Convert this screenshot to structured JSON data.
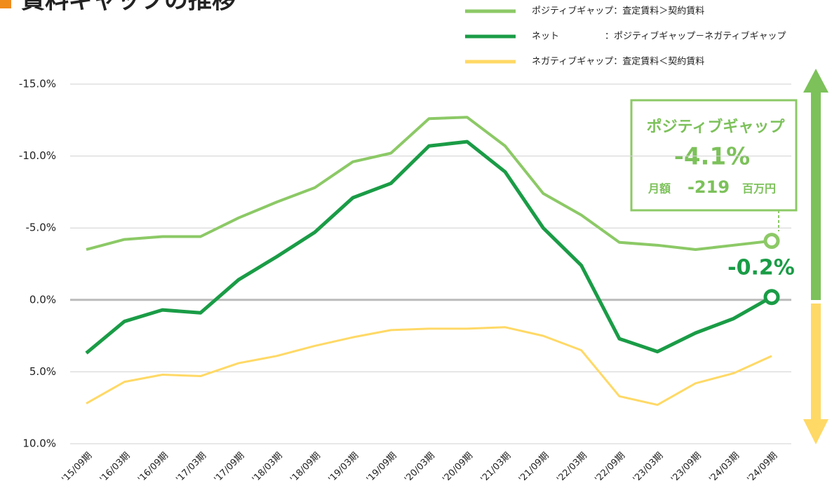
{
  "chart_data": {
    "type": "line",
    "title": "賃料ギャップの推移",
    "categories": [
      "'15/09期",
      "'16/03期",
      "'16/09期",
      "'17/03期",
      "'17/09期",
      "'18/03期",
      "'18/09期",
      "'19/03期",
      "'19/09期",
      "'20/03期",
      "'20/09期",
      "'21/03期",
      "'21/09期",
      "'22/03期",
      "'22/09期",
      "'23/03期",
      "'23/09期",
      "'24/03期",
      "'24/09期"
    ],
    "series": [
      {
        "name": "ポジティブギャップ：査定賃料＞契約賃料",
        "color": "#8cc966",
        "width": 4,
        "values": [
          -3.5,
          -4.2,
          -4.4,
          -4.4,
          -5.7,
          -6.8,
          -7.8,
          -9.6,
          -10.2,
          -12.6,
          -12.7,
          -10.7,
          -7.4,
          -5.9,
          -4.0,
          -3.8,
          -3.5,
          -3.8,
          -4.1
        ]
      },
      {
        "name": "ネット　　　　　：ポジティブギャップ－ネガティブギャップ",
        "color": "#1a9c46",
        "width": 5,
        "values": [
          3.7,
          1.5,
          0.7,
          0.9,
          -1.4,
          -3.0,
          -4.7,
          -7.1,
          -8.1,
          -10.7,
          -11.0,
          -8.9,
          -5.0,
          -2.4,
          2.7,
          3.6,
          2.3,
          1.3,
          -0.2
        ]
      },
      {
        "name": "ネガティブギャップ：査定賃料＜契約賃料",
        "color": "#ffd966",
        "width": 3,
        "values": [
          7.2,
          5.7,
          5.2,
          5.3,
          4.4,
          3.9,
          3.2,
          2.6,
          2.1,
          2.0,
          2.0,
          1.9,
          2.5,
          3.5,
          6.7,
          7.3,
          5.8,
          5.1,
          3.9
        ]
      }
    ],
    "ylim": [
      -15,
      10
    ],
    "y_inverted": true,
    "yticks": [
      {
        "value": -15,
        "label": "-15.0%"
      },
      {
        "value": -10,
        "label": "-10.0%"
      },
      {
        "value": -5,
        "label": "-5.0%"
      },
      {
        "value": 0,
        "label": "0.0%"
      },
      {
        "value": 5,
        "label": "5.0%"
      },
      {
        "value": 10,
        "label": "10.0%"
      }
    ],
    "grid": true,
    "legend": "top-right",
    "annotations": {
      "box_title": "ポジティブギャップ",
      "box_value": "-4.1%",
      "box_sub_a": "月額",
      "box_sub_b": "-219",
      "box_sub_c": "百万円",
      "net_label": "-0.2%"
    }
  }
}
